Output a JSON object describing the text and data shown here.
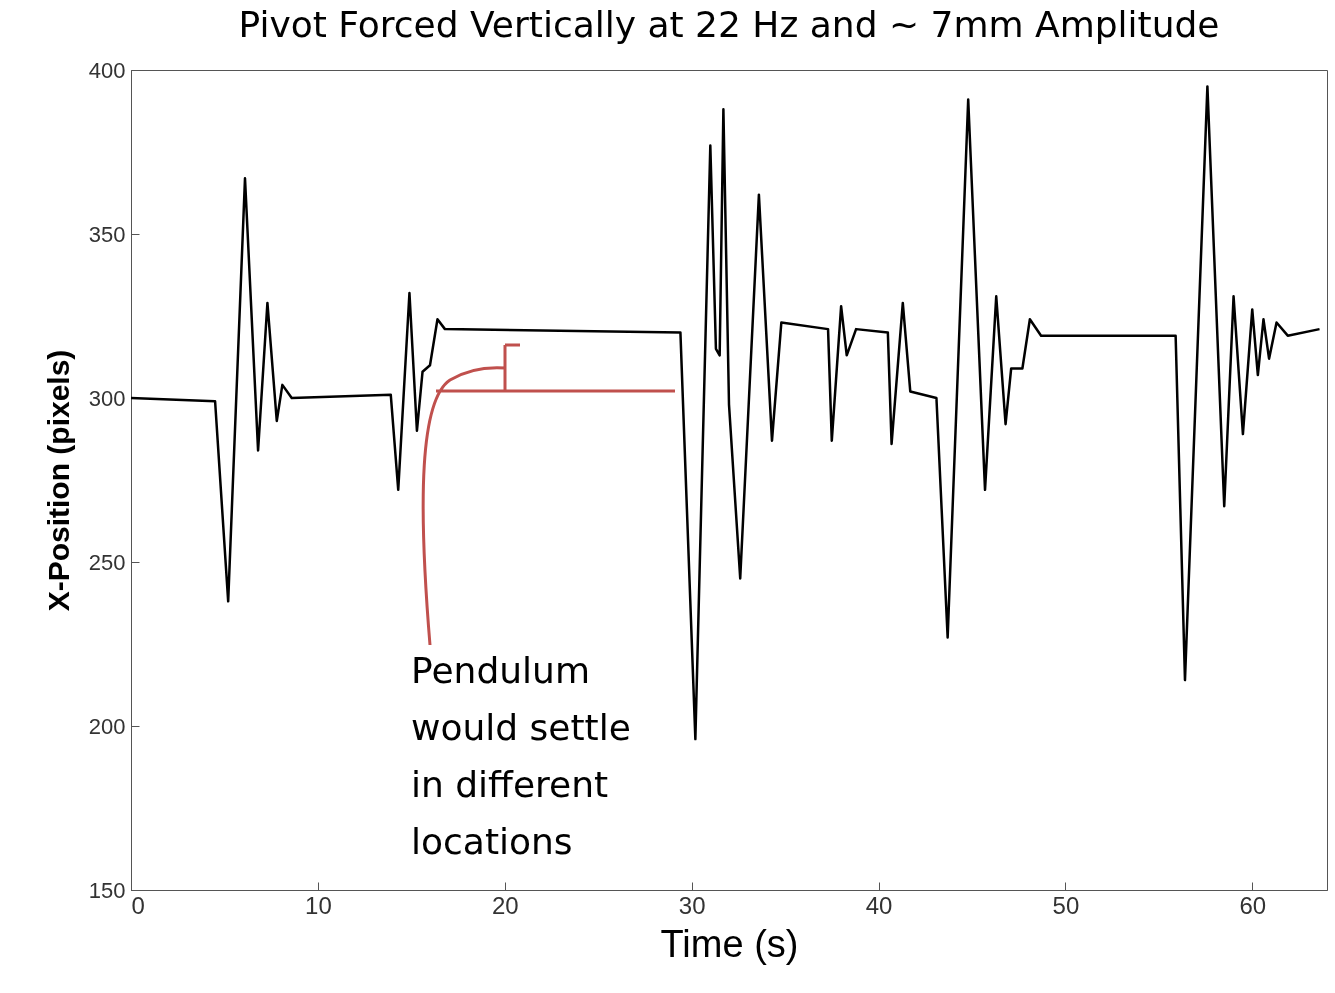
{
  "chart_data": {
    "type": "line",
    "title": "Pivot Forced Vertically at 22 Hz and ~ 7mm Amplitude",
    "xlabel": "Time (s)",
    "ylabel": "X-Position (pixels)",
    "x": [
      0,
      4.5,
      5.2,
      6.1,
      6.8,
      7.3,
      7.8,
      8.1,
      8.6,
      13.9,
      14.3,
      14.9,
      15.3,
      15.6,
      16.0,
      16.4,
      16.8,
      29.4,
      30.2,
      31.0,
      31.3,
      31.5,
      31.7,
      32.0,
      32.6,
      33.6,
      34.3,
      34.8,
      37.3,
      37.5,
      38.0,
      38.3,
      38.8,
      40.5,
      40.7,
      41.3,
      41.7,
      43.1,
      43.7,
      44.8,
      45.7,
      46.3,
      46.8,
      47.1,
      47.7,
      48.1,
      48.7,
      55.9,
      56.4,
      57.6,
      58.5,
      59.0,
      59.5,
      60.0,
      60.3,
      60.6,
      60.9,
      61.3,
      61.9,
      63.6
    ],
    "series": [
      {
        "color": "#000000",
        "values": [
          300,
          299,
          238,
          367,
          284,
          329,
          293,
          304,
          300,
          301,
          272,
          332,
          290,
          308,
          310,
          324,
          321,
          320,
          196,
          377,
          315,
          313,
          388,
          298,
          245,
          362,
          287,
          323,
          321,
          287,
          328,
          313,
          321,
          320,
          286,
          329,
          302,
          300,
          227,
          391,
          272,
          331,
          292,
          309,
          309,
          324,
          319,
          319,
          214,
          395,
          267,
          331,
          289,
          327,
          307,
          324,
          312,
          323,
          319,
          321
        ]
      }
    ],
    "xlim": [
      0,
      64
    ],
    "xticks": [
      0,
      10,
      20,
      30,
      40,
      50,
      60
    ],
    "ylim": [
      150,
      400
    ],
    "yticks": [
      150,
      200,
      250,
      300,
      350,
      400
    ],
    "grid": false,
    "legend": false,
    "annotations": [
      "Pendulum would settle in different locations"
    ]
  }
}
